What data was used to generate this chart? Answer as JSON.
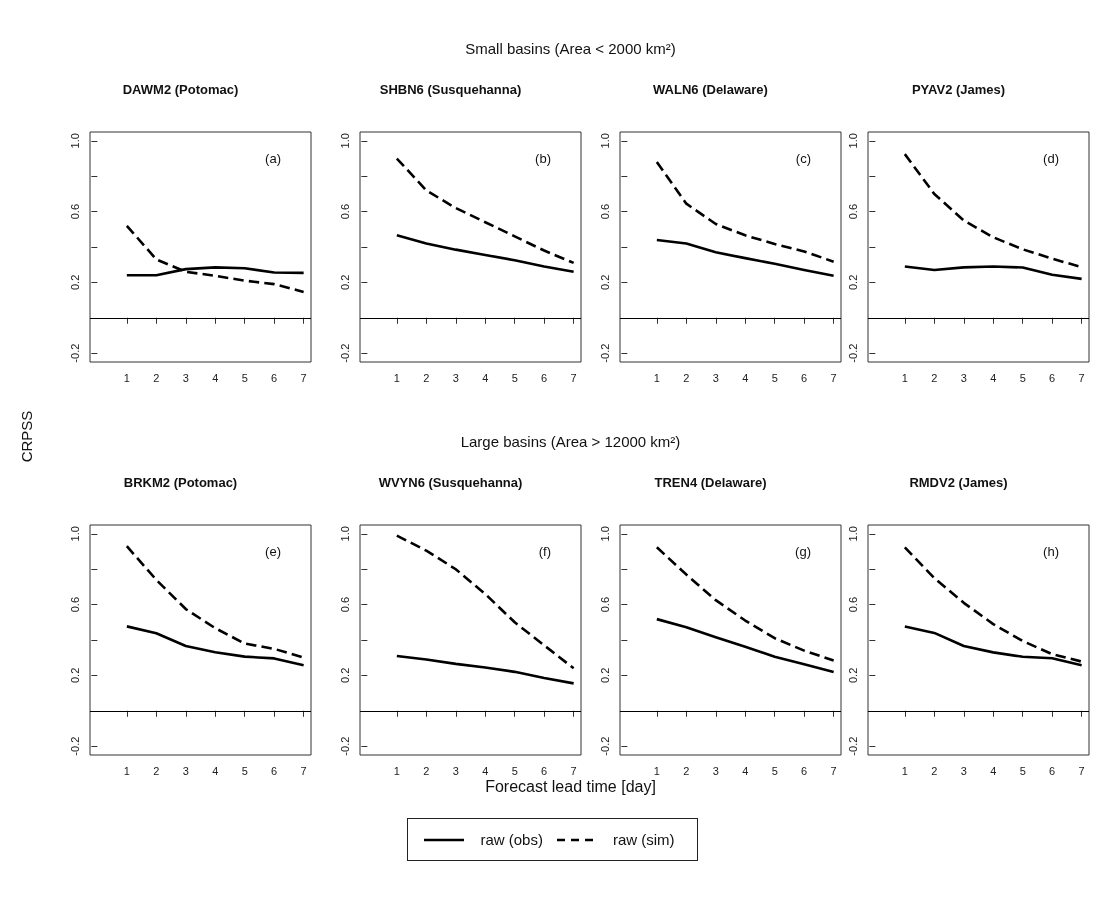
{
  "chart_data": [
    {
      "type": "line",
      "title": "DAWM2 (Potomac)",
      "ylabel": "CRPSS",
      "annotations": [
        "(a)"
      ],
      "legend": "bottom",
      "marker": "none",
      "x": [
        1,
        2,
        3,
        4,
        5,
        6,
        7
      ],
      "xlim": [
        -0.25,
        7.25
      ],
      "xticks": [
        1,
        2,
        3,
        4,
        5,
        6,
        7
      ],
      "ylim": [
        -0.25,
        1.05
      ],
      "yticks": [
        -0.2,
        {
          "value": 0,
          "label": null
        },
        0.2,
        {
          "value": 0.4,
          "label": null
        },
        0.6,
        {
          "value": 0.8,
          "label": null
        },
        {
          "value": 1,
          "label": "1.0"
        }
      ],
      "ref_lines": [
        {
          "axis": "y",
          "value": 0,
          "color": "#000000"
        }
      ],
      "series": [
        {
          "name": "raw (obs)",
          "color": "#000000",
          "line_style": "solid",
          "values": [
            0.24,
            0.24,
            0.275,
            0.285,
            0.28,
            0.256,
            0.254
          ]
        },
        {
          "name": "raw (sim)",
          "color": "#000000",
          "line_style": "dashed",
          "values": [
            0.52,
            0.33,
            0.26,
            0.237,
            0.21,
            0.19,
            0.146
          ]
        }
      ]
    },
    {
      "type": "line",
      "title": "SHBN6 (Susquehanna)",
      "subtitle": "Small basins (Area < 2000 km²)",
      "annotations": [
        "(b)"
      ],
      "marker": "none",
      "x": [
        1,
        2,
        3,
        4,
        5,
        6,
        7
      ],
      "xlim": [
        -0.25,
        7.25
      ],
      "xticks": [
        1,
        2,
        3,
        4,
        5,
        6,
        7
      ],
      "ylim": [
        -0.25,
        1.05
      ],
      "yticks": [
        -0.2,
        {
          "value": 0,
          "label": null
        },
        0.2,
        {
          "value": 0.4,
          "label": null
        },
        0.6,
        {
          "value": 0.8,
          "label": null
        },
        {
          "value": 1,
          "label": "1.0"
        }
      ],
      "ref_lines": [
        {
          "axis": "y",
          "value": 0,
          "color": "#000000"
        }
      ],
      "series": [
        {
          "color": "#000000",
          "line_style": "solid",
          "values": [
            0.466,
            0.42,
            0.385,
            0.355,
            0.325,
            0.29,
            0.26
          ]
        },
        {
          "color": "#000000",
          "line_style": "dashed",
          "values": [
            0.9,
            0.72,
            0.62,
            0.54,
            0.46,
            0.38,
            0.31
          ]
        }
      ]
    },
    {
      "type": "line",
      "title": "WALN6 (Delaware)",
      "annotations": [
        "(c)"
      ],
      "marker": "none",
      "x": [
        1,
        2,
        3,
        4,
        5,
        6,
        7
      ],
      "xlim": [
        -0.25,
        7.25
      ],
      "xticks": [
        1,
        2,
        3,
        4,
        5,
        6,
        7
      ],
      "ylim": [
        -0.25,
        1.05
      ],
      "yticks": [
        -0.2,
        {
          "value": 0,
          "label": null
        },
        0.2,
        {
          "value": 0.4,
          "label": null
        },
        0.6,
        {
          "value": 0.8,
          "label": null
        },
        {
          "value": 1,
          "label": "1.0"
        }
      ],
      "ref_lines": [
        {
          "axis": "y",
          "value": 0,
          "color": "#000000"
        }
      ],
      "series": [
        {
          "color": "#000000",
          "line_style": "solid",
          "values": [
            0.44,
            0.42,
            0.37,
            0.337,
            0.305,
            0.27,
            0.237
          ]
        },
        {
          "color": "#000000",
          "line_style": "dashed",
          "values": [
            0.88,
            0.645,
            0.53,
            0.466,
            0.417,
            0.375,
            0.317
          ]
        }
      ]
    },
    {
      "type": "line",
      "title": "PYAV2 (James)",
      "annotations": [
        "(d)"
      ],
      "marker": "none",
      "x": [
        1,
        2,
        3,
        4,
        5,
        6,
        7
      ],
      "xlim": [
        -0.25,
        7.25
      ],
      "xticks": [
        1,
        2,
        3,
        4,
        5,
        6,
        7
      ],
      "ylim": [
        -0.25,
        1.05
      ],
      "yticks": [
        -0.2,
        {
          "value": 0,
          "label": null
        },
        0.2,
        {
          "value": 0.4,
          "label": null
        },
        0.6,
        {
          "value": 0.8,
          "label": null
        },
        {
          "value": 1,
          "label": "1.0"
        }
      ],
      "ref_lines": [
        {
          "axis": "y",
          "value": 0,
          "color": "#000000"
        }
      ],
      "series": [
        {
          "color": "#000000",
          "line_style": "solid",
          "values": [
            0.29,
            0.27,
            0.285,
            0.29,
            0.284,
            0.243,
            0.22
          ]
        },
        {
          "color": "#000000",
          "line_style": "dashed",
          "values": [
            0.925,
            0.7,
            0.55,
            0.455,
            0.387,
            0.334,
            0.286
          ]
        }
      ]
    },
    {
      "type": "line",
      "title": "BRKM2 (Potomac)",
      "annotations": [
        "(e)"
      ],
      "marker": "none",
      "x": [
        1,
        2,
        3,
        4,
        5,
        6,
        7
      ],
      "xlim": [
        -0.25,
        7.25
      ],
      "xticks": [
        1,
        2,
        3,
        4,
        5,
        6,
        7
      ],
      "ylim": [
        -0.25,
        1.05
      ],
      "yticks": [
        -0.2,
        {
          "value": 0,
          "label": null
        },
        0.2,
        {
          "value": 0.4,
          "label": null
        },
        0.6,
        {
          "value": 0.8,
          "label": null
        },
        {
          "value": 1,
          "label": "1.0"
        }
      ],
      "ref_lines": [
        {
          "axis": "y",
          "value": 0,
          "color": "#000000"
        }
      ],
      "series": [
        {
          "color": "#000000",
          "line_style": "solid",
          "values": [
            0.477,
            0.438,
            0.366,
            0.331,
            0.306,
            0.296,
            0.257
          ]
        },
        {
          "color": "#000000",
          "line_style": "dashed",
          "values": [
            0.93,
            0.74,
            0.575,
            0.467,
            0.38,
            0.35,
            0.3
          ]
        }
      ]
    },
    {
      "type": "line",
      "title": "WVYN6 (Susquehanna)",
      "subtitle": "Large basins (Area > 12000 km²)",
      "xlabel": "Forecast lead time [day]",
      "annotations": [
        "(f)"
      ],
      "marker": "none",
      "x": [
        1,
        2,
        3,
        4,
        5,
        6,
        7
      ],
      "xlim": [
        -0.25,
        7.25
      ],
      "xticks": [
        1,
        2,
        3,
        4,
        5,
        6,
        7
      ],
      "ylim": [
        -0.25,
        1.05
      ],
      "yticks": [
        -0.2,
        {
          "value": 0,
          "label": null
        },
        0.2,
        {
          "value": 0.4,
          "label": null
        },
        0.6,
        {
          "value": 0.8,
          "label": null
        },
        {
          "value": 1,
          "label": "1.0"
        }
      ],
      "ref_lines": [
        {
          "axis": "y",
          "value": 0,
          "color": "#000000"
        }
      ],
      "series": [
        {
          "color": "#000000",
          "line_style": "solid",
          "values": [
            0.31,
            0.29,
            0.265,
            0.245,
            0.22,
            0.185,
            0.155
          ]
        },
        {
          "color": "#000000",
          "line_style": "dashed",
          "values": [
            0.99,
            0.905,
            0.8,
            0.66,
            0.5,
            0.37,
            0.24
          ]
        }
      ]
    },
    {
      "type": "line",
      "title": "TREN4 (Delaware)",
      "annotations": [
        "(g)"
      ],
      "marker": "none",
      "x": [
        1,
        2,
        3,
        4,
        5,
        6,
        7
      ],
      "xlim": [
        -0.25,
        7.25
      ],
      "xticks": [
        1,
        2,
        3,
        4,
        5,
        6,
        7
      ],
      "ylim": [
        -0.25,
        1.05
      ],
      "yticks": [
        -0.2,
        {
          "value": 0,
          "label": null
        },
        0.2,
        {
          "value": 0.4,
          "label": null
        },
        0.6,
        {
          "value": 0.8,
          "label": null
        },
        {
          "value": 1,
          "label": "1.0"
        }
      ],
      "ref_lines": [
        {
          "axis": "y",
          "value": 0,
          "color": "#000000"
        }
      ],
      "series": [
        {
          "color": "#000000",
          "line_style": "solid",
          "values": [
            0.518,
            0.472,
            0.415,
            0.362,
            0.305,
            0.263,
            0.219
          ]
        },
        {
          "color": "#000000",
          "line_style": "dashed",
          "values": [
            0.924,
            0.77,
            0.625,
            0.51,
            0.41,
            0.34,
            0.284
          ]
        }
      ]
    },
    {
      "type": "line",
      "title": "RMDV2 (James)",
      "annotations": [
        "(h)"
      ],
      "marker": "none",
      "x": [
        1,
        2,
        3,
        4,
        5,
        6,
        7
      ],
      "xlim": [
        -0.25,
        7.25
      ],
      "xticks": [
        1,
        2,
        3,
        4,
        5,
        6,
        7
      ],
      "ylim": [
        -0.25,
        1.05
      ],
      "yticks": [
        -0.2,
        {
          "value": 0,
          "label": null
        },
        0.2,
        {
          "value": 0.4,
          "label": null
        },
        0.6,
        {
          "value": 0.8,
          "label": null
        },
        {
          "value": 1,
          "label": "1.0"
        }
      ],
      "ref_lines": [
        {
          "axis": "y",
          "value": 0,
          "color": "#000000"
        }
      ],
      "series": [
        {
          "color": "#000000",
          "line_style": "solid",
          "values": [
            0.476,
            0.44,
            0.366,
            0.33,
            0.305,
            0.297,
            0.257
          ]
        },
        {
          "color": "#000000",
          "line_style": "dashed",
          "values": [
            0.924,
            0.75,
            0.61,
            0.49,
            0.394,
            0.32,
            0.278
          ]
        }
      ]
    }
  ]
}
